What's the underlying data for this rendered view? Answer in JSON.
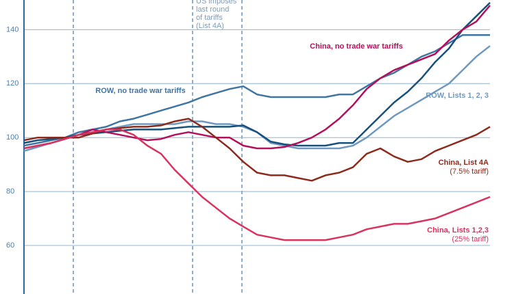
{
  "chart_data": {
    "type": "line",
    "x": [
      0,
      1,
      2,
      3,
      4,
      5,
      6,
      7,
      8,
      9,
      10,
      11,
      12,
      13,
      14,
      15,
      16,
      17,
      18,
      19,
      20,
      21,
      22,
      23,
      24,
      25,
      26,
      27,
      28,
      29,
      30,
      31,
      32,
      33,
      34
    ],
    "xlim": [
      0,
      34
    ],
    "ylim": [
      42,
      151
    ],
    "yticks": [
      60,
      80,
      100,
      120,
      140
    ],
    "grid": true,
    "vlines": [
      3.6,
      12.3,
      15.9
    ],
    "annotation": [
      "US imposes",
      "last round",
      "of tariffs",
      "(List 4A)"
    ],
    "series": [
      {
        "name": "ROW, no trade war tariffs",
        "color": "#3f74a3",
        "values": [
          97,
          98,
          99,
          100,
          102,
          103,
          104,
          106,
          107,
          108.5,
          110,
          111.5,
          113,
          115,
          116.5,
          118,
          119,
          116,
          115,
          115,
          115,
          115,
          115,
          116,
          116,
          119,
          122,
          124,
          127,
          130,
          132,
          135,
          138,
          138,
          138
        ]
      },
      {
        "name": "ROW, Lists 1, 2, 3",
        "color": "#6f98c0",
        "values": [
          95,
          96.5,
          98,
          99.5,
          101,
          102,
          103,
          104,
          105,
          105,
          105,
          105,
          106,
          106,
          105,
          105,
          104,
          102,
          98,
          97,
          96,
          96,
          96,
          96,
          97,
          100,
          104,
          108,
          111,
          114,
          117,
          120,
          125,
          130,
          134
        ]
      },
      {
        "name": null,
        "color": "#17507a",
        "values": [
          98,
          99,
          99.5,
          100,
          101,
          101.5,
          102,
          102.5,
          103,
          103,
          103,
          103.5,
          104,
          104,
          104,
          104,
          104.5,
          102,
          98.5,
          97.5,
          97,
          97,
          97,
          98,
          98,
          103,
          108,
          113,
          117,
          122,
          128,
          133,
          140,
          145,
          150
        ]
      },
      {
        "name": "China, no trade war tariffs",
        "color": "#b3105c",
        "values": [
          96,
          97,
          98,
          99.5,
          101,
          103,
          102,
          101,
          100,
          99,
          99.5,
          101,
          102,
          101,
          100,
          100,
          97,
          96,
          96,
          96.5,
          98,
          100,
          103,
          107,
          112,
          118,
          122,
          125,
          127,
          129,
          131,
          136,
          140,
          143,
          149
        ]
      },
      {
        "name": "China, List 4A",
        "note": "(7.5% tariff)",
        "color": "#8c2a1c",
        "values": [
          99,
          100,
          100,
          100,
          100,
          101.5,
          103,
          103.5,
          104,
          104,
          104.5,
          106,
          107,
          104,
          100,
          96,
          91,
          87,
          86,
          86,
          85,
          84,
          86,
          87,
          89,
          94,
          96,
          93,
          91,
          92,
          95,
          97,
          99,
          101,
          104
        ]
      },
      {
        "name": "China, Lists 1,2,3",
        "note": "(25% tariff)",
        "color": "#d8335f",
        "values": [
          96,
          97,
          98,
          99.5,
          101,
          102,
          103,
          103,
          101,
          97,
          94,
          88,
          83,
          78,
          74,
          70,
          67,
          64,
          63,
          62,
          62,
          62,
          62,
          63,
          64,
          66,
          67,
          68,
          68,
          69,
          70,
          72,
          74,
          76,
          78
        ]
      }
    ]
  }
}
